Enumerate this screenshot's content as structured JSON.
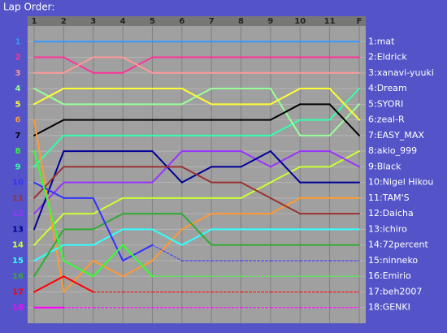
{
  "chart_data": {
    "type": "line",
    "title": "Lap Order:",
    "categories": [
      "1",
      "2",
      "3",
      "4",
      "5",
      "6",
      "7",
      "8",
      "9",
      "10",
      "11",
      "F"
    ],
    "ylim": [
      19,
      0
    ],
    "yticks": [
      1,
      2,
      3,
      4,
      5,
      6,
      7,
      8,
      9,
      10,
      11,
      12,
      13,
      14,
      15,
      16,
      17,
      18
    ],
    "grid": true,
    "series": [
      {
        "name": "1:mat",
        "color": "#3399ff",
        "values": [
          1,
          1,
          1,
          1,
          1,
          1,
          1,
          1,
          1,
          1,
          1,
          1
        ]
      },
      {
        "name": "2:Eldrick",
        "color": "#ff3399",
        "values": [
          2,
          2,
          3,
          3,
          2,
          2,
          2,
          2,
          2,
          2,
          2,
          2
        ]
      },
      {
        "name": "3:xanavi-yuuki",
        "color": "#ff9999",
        "values": [
          3,
          3,
          2,
          2,
          3,
          3,
          3,
          3,
          3,
          3,
          3,
          3
        ]
      },
      {
        "name": "4:Dream",
        "color": "#33ffaa",
        "values": [
          9,
          7,
          7,
          7,
          7,
          7,
          7,
          7,
          7,
          6,
          6,
          4
        ]
      },
      {
        "name": "5:SYORI",
        "color": "#99ff99",
        "values": [
          4,
          5,
          5,
          5,
          5,
          5,
          4,
          4,
          4,
          7,
          7,
          5
        ]
      },
      {
        "name": "6:zeal-R",
        "color": "#ffff33",
        "values": [
          5,
          4,
          4,
          4,
          4,
          4,
          5,
          5,
          5,
          4,
          4,
          6
        ]
      },
      {
        "name": "7:EASY_MAX",
        "color": "#000000",
        "values": [
          7,
          6,
          6,
          6,
          6,
          6,
          6,
          6,
          6,
          5,
          5,
          7
        ]
      },
      {
        "name": "8:akio_999",
        "color": "#ccff33",
        "values": [
          14,
          12,
          12,
          11,
          11,
          11,
          11,
          11,
          10,
          9,
          9,
          8
        ]
      },
      {
        "name": "9:Black",
        "color": "#9933ff",
        "values": [
          12,
          10,
          10,
          10,
          10,
          8,
          8,
          8,
          9,
          8,
          8,
          9
        ]
      },
      {
        "name": "10:Nigel Hikou",
        "color": "#000099",
        "values": [
          13,
          8,
          8,
          8,
          8,
          10,
          9,
          9,
          8,
          10,
          10,
          10
        ]
      },
      {
        "name": "11:TAM'S",
        "color": "#ff9933",
        "values": [
          6,
          17,
          15,
          16,
          15,
          13,
          12,
          12,
          12,
          11,
          11,
          11
        ]
      },
      {
        "name": "12:Daicha",
        "color": "#993333",
        "values": [
          11,
          9,
          9,
          9,
          9,
          9,
          10,
          10,
          11,
          12,
          12,
          12
        ]
      },
      {
        "name": "13:ichiro",
        "color": "#33ffff",
        "values": [
          15,
          14,
          14,
          13,
          13,
          14,
          13,
          13,
          13,
          13,
          13,
          13
        ]
      },
      {
        "name": "14:72percent",
        "color": "#33aa33",
        "values": [
          16,
          13,
          13,
          12,
          12,
          12,
          14,
          14,
          14,
          14,
          14,
          14
        ]
      },
      {
        "name": "15:ninneko",
        "color": "#3333ff",
        "values": [
          10,
          11,
          11,
          15,
          14,
          15,
          15,
          15,
          15,
          15,
          15,
          15
        ],
        "dashed_from": 4
      },
      {
        "name": "16:Emirio",
        "color": "#33ff33",
        "values": [
          8,
          15,
          16,
          14,
          16,
          16,
          16,
          16,
          16,
          16,
          16,
          16
        ],
        "dashed_from": 4
      },
      {
        "name": "17:beh2007",
        "color": "#ff0000",
        "values": [
          17,
          16,
          17,
          17,
          17,
          17,
          17,
          17,
          17,
          17,
          17,
          17
        ],
        "dashed_from": 2
      },
      {
        "name": "18:GENKI",
        "color": "#ff00ff",
        "values": [
          18,
          18,
          18,
          18,
          18,
          18,
          18,
          18,
          18,
          18,
          18,
          18
        ],
        "dashed_from": 1
      }
    ]
  }
}
